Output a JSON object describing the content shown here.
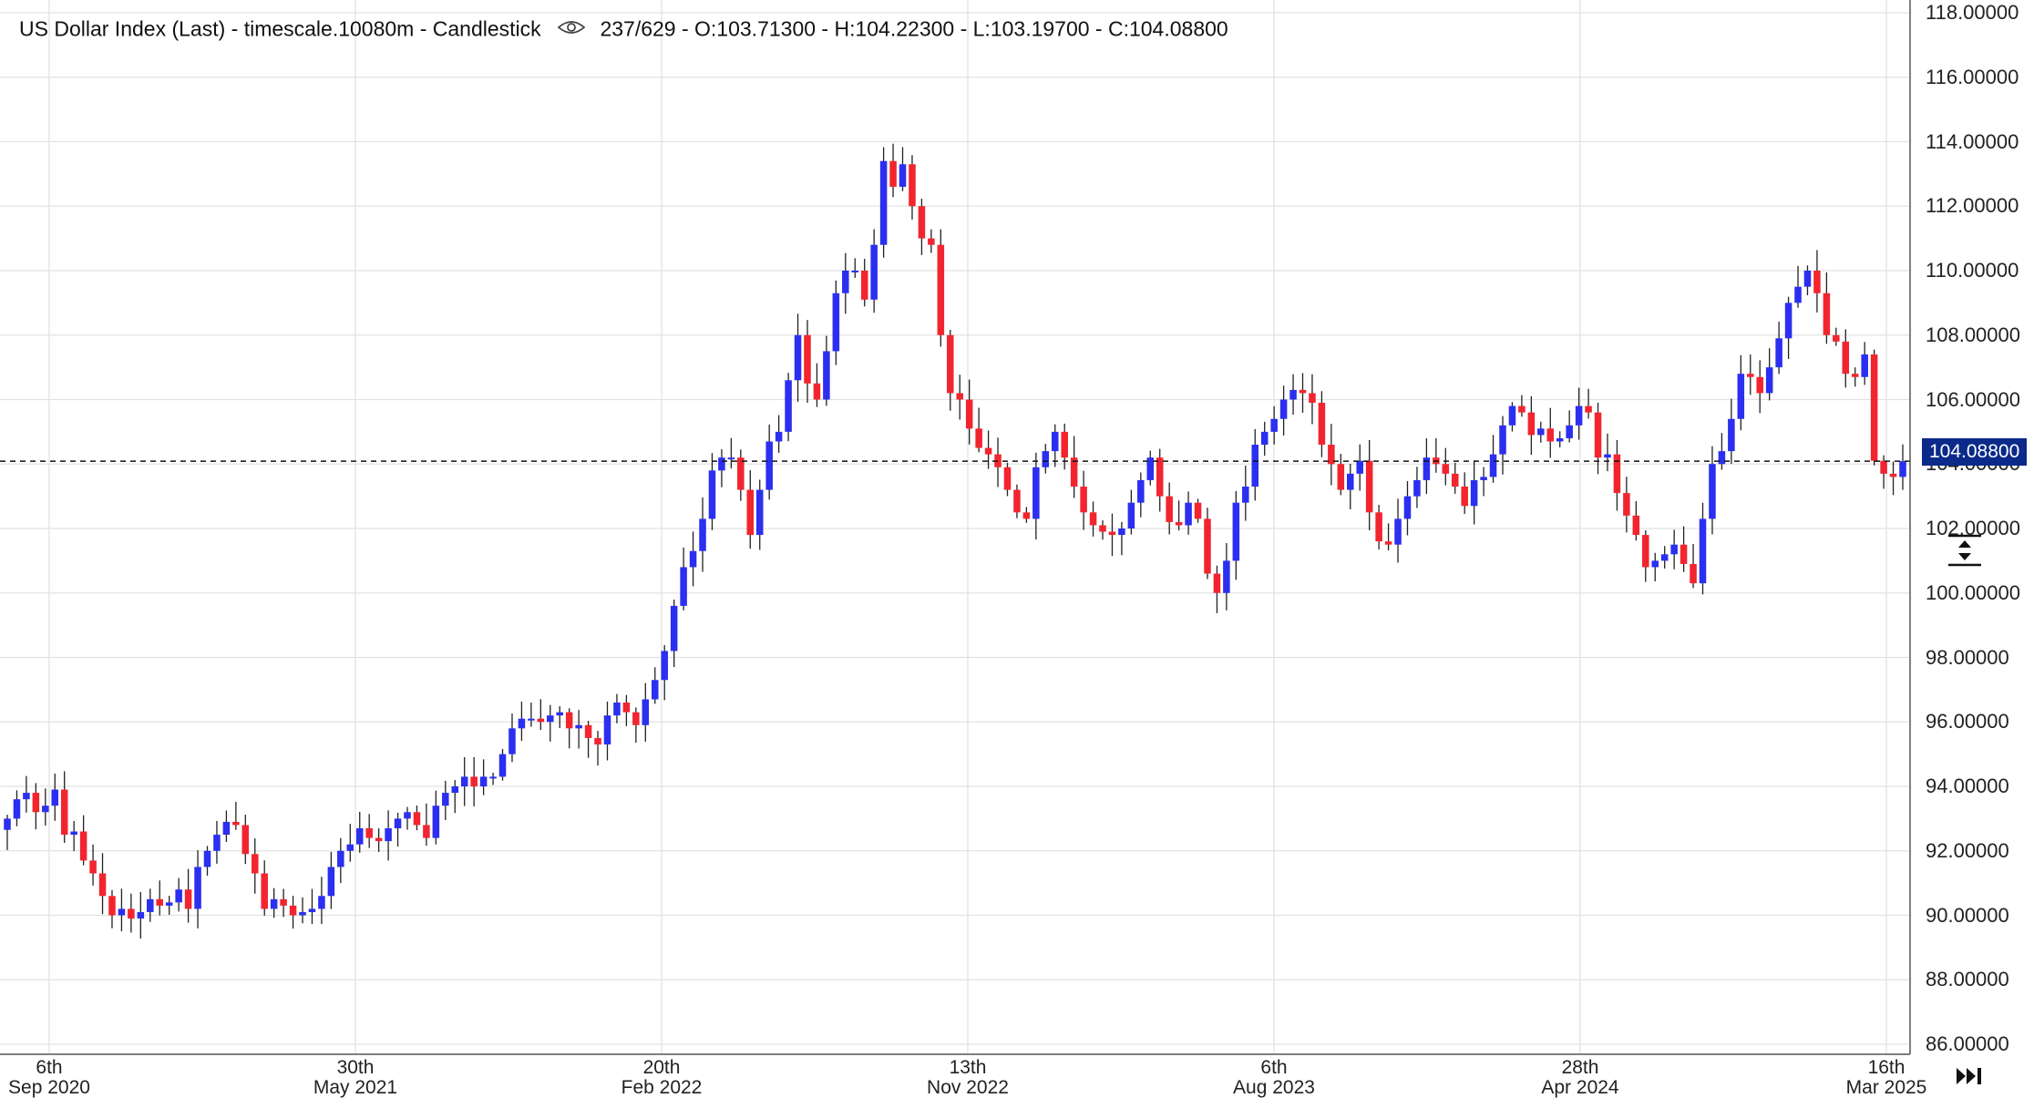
{
  "header": {
    "title": "US Dollar Index (Last) - timescale.10080m - Candlestick",
    "info": "237/629 - O:103.71300 - H:104.22300 - L:103.19700 - C:104.08800",
    "eye_icon": "eye-icon"
  },
  "last_price_label": "104.08800",
  "colors": {
    "up": "#2b2ff0",
    "down": "#f2252f",
    "badge": "#0b2a8a"
  },
  "chart_data": {
    "type": "candlestick",
    "title": "US Dollar Index (Last) - timescale.10080m - Candlestick",
    "ylim": [
      86,
      118
    ],
    "ytick_labels": [
      "118.00000",
      "116.00000",
      "114.00000",
      "112.00000",
      "110.00000",
      "108.00000",
      "106.00000",
      "104.00000",
      "102.00000",
      "100.00000",
      "98.00000",
      "96.00000",
      "94.00000",
      "92.00000",
      "90.00000",
      "88.00000",
      "86.00000"
    ],
    "xtick_labels": [
      {
        "day": "6th",
        "month": "Sep 2020"
      },
      {
        "day": "30th",
        "month": "May 2021"
      },
      {
        "day": "20th",
        "month": "Feb 2022"
      },
      {
        "day": "13th",
        "month": "Nov 2022"
      },
      {
        "day": "6th",
        "month": "Aug 2023"
      },
      {
        "day": "28th",
        "month": "Apr 2024"
      },
      {
        "day": "16th",
        "month": "Mar 2025"
      }
    ],
    "last_price": 104.088,
    "grid": true,
    "closes": [
      93.0,
      93.6,
      93.8,
      93.2,
      93.4,
      93.9,
      92.5,
      92.6,
      91.7,
      91.3,
      90.6,
      90.0,
      90.2,
      89.9,
      90.1,
      90.5,
      90.3,
      90.4,
      90.8,
      90.2,
      91.5,
      92.0,
      92.5,
      92.9,
      92.8,
      91.9,
      91.3,
      90.2,
      90.5,
      90.3,
      90.0,
      90.1,
      90.2,
      90.6,
      91.5,
      92.0,
      92.2,
      92.7,
      92.4,
      92.3,
      92.7,
      93.0,
      93.2,
      92.8,
      92.4,
      93.4,
      93.8,
      94.0,
      94.3,
      94.0,
      94.3,
      94.3,
      95.0,
      95.8,
      96.1,
      96.1,
      96.0,
      96.2,
      96.3,
      95.8,
      95.9,
      95.5,
      95.3,
      96.2,
      96.6,
      96.3,
      95.9,
      96.7,
      97.3,
      98.2,
      99.6,
      100.8,
      101.3,
      102.3,
      103.8,
      104.2,
      104.2,
      103.2,
      101.8,
      103.2,
      104.7,
      105.0,
      106.6,
      108.0,
      106.5,
      106.0,
      107.5,
      109.3,
      110.0,
      110.0,
      109.1,
      110.8,
      113.4,
      112.6,
      113.3,
      112.0,
      111.0,
      110.8,
      108.0,
      106.2,
      106.0,
      105.1,
      104.5,
      104.3,
      103.9,
      103.2,
      102.5,
      102.3,
      103.9,
      104.4,
      105.0,
      104.2,
      103.3,
      102.5,
      102.1,
      101.9,
      101.8,
      102.0,
      102.8,
      103.5,
      104.2,
      103.0,
      102.2,
      102.1,
      102.8,
      102.3,
      100.6,
      100.0,
      101.0,
      102.8,
      103.3,
      104.6,
      105.0,
      105.4,
      106.0,
      106.3,
      106.2,
      105.9,
      104.6,
      104.0,
      103.2,
      103.7,
      104.1,
      102.5,
      101.6,
      101.5,
      102.3,
      103.0,
      103.5,
      104.2,
      104.0,
      103.7,
      103.3,
      102.7,
      103.5,
      103.6,
      104.3,
      105.2,
      105.8,
      105.6,
      104.9,
      105.1,
      104.7,
      104.8,
      105.2,
      105.8,
      105.6,
      104.2,
      104.3,
      103.1,
      102.4,
      101.8,
      100.8,
      101.0,
      101.2,
      101.5,
      100.9,
      100.3,
      102.3,
      104.0,
      104.4,
      105.4,
      106.8,
      106.7,
      106.2,
      107.0,
      107.9,
      109.0,
      109.5,
      110.0,
      109.3,
      108.0,
      107.8,
      106.8,
      106.7,
      107.4,
      104.1,
      103.7,
      103.6,
      104.088
    ]
  }
}
